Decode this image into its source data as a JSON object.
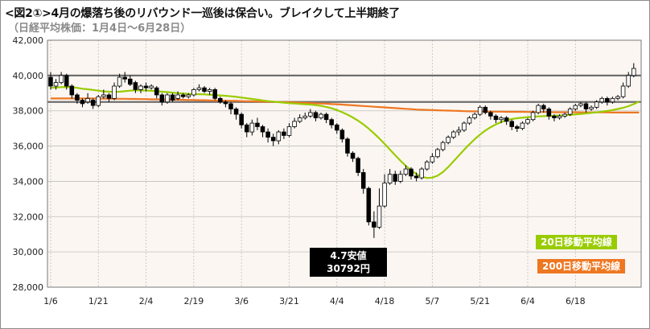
{
  "header": {
    "title": "<図2①>4月の爆落ち後のリバウンド一巡後は保合い。ブレイクして上半期終了",
    "subtitle": "（日経平均株価：1月4日～6月28日）"
  },
  "legend": {
    "ma20": "20日移動平均線",
    "ma200": "200日移動平均線"
  },
  "callout": {
    "line1": "4.7安値",
    "line2": "30792円"
  },
  "colors": {
    "ma20": "#99cc00",
    "ma200": "#ee7722",
    "bull": "#ffffff",
    "bear": "#000000",
    "plot_bg": "#fbf6f1",
    "grid": "#bfbfbf",
    "hline": "#6e6e6e"
  },
  "chart_data": {
    "type": "candlestick",
    "y_ticks": [
      "42,000",
      "40,000",
      "38,000",
      "36,000",
      "34,000",
      "32,000",
      "30,000",
      "28,000"
    ],
    "x_ticks": [
      "1/6",
      "1/21",
      "2/4",
      "2/19",
      "3/6",
      "3/21",
      "4/4",
      "4/18",
      "5/7",
      "5/21",
      "6/4",
      "6/18"
    ],
    "ylim": [
      28000,
      42000
    ],
    "horizontal_lines": [
      40000,
      38500
    ],
    "candles": [
      [
        39900,
        39400,
        40200,
        39200
      ],
      [
        39400,
        39600,
        39800,
        39200
      ],
      [
        39600,
        40000,
        40200,
        39500
      ],
      [
        40000,
        39400,
        40100,
        39200
      ],
      [
        39400,
        38900,
        39500,
        38700
      ],
      [
        38900,
        38600,
        39000,
        38400
      ],
      [
        38600,
        38400,
        38700,
        38200
      ],
      [
        38500,
        38700,
        39000,
        38400
      ],
      [
        38600,
        38300,
        38700,
        38100
      ],
      [
        38300,
        38800,
        38900,
        38200
      ],
      [
        38800,
        38900,
        39200,
        38700
      ],
      [
        38900,
        38700,
        39000,
        38500
      ],
      [
        38700,
        39400,
        39600,
        38600
      ],
      [
        39400,
        39900,
        40100,
        39300
      ],
      [
        39900,
        39800,
        40200,
        39600
      ],
      [
        39800,
        39500,
        40000,
        39400
      ],
      [
        39600,
        39200,
        39700,
        39000
      ],
      [
        39200,
        39400,
        39500,
        39000
      ],
      [
        39400,
        39300,
        39600,
        39100
      ],
      [
        39300,
        39400,
        39500,
        39200
      ],
      [
        39300,
        38900,
        39400,
        38700
      ],
      [
        38900,
        38500,
        39000,
        38300
      ],
      [
        38500,
        38900,
        39000,
        38400
      ],
      [
        38900,
        38600,
        39000,
        38500
      ],
      [
        38700,
        38900,
        39100,
        38600
      ],
      [
        38900,
        38800,
        39000,
        38700
      ],
      [
        38800,
        38900,
        39000,
        38700
      ],
      [
        38900,
        39200,
        39300,
        38800
      ],
      [
        39200,
        39300,
        39500,
        39100
      ],
      [
        39300,
        39100,
        39400,
        39000
      ],
      [
        39100,
        39200,
        39300,
        38900
      ],
      [
        39200,
        38700,
        39300,
        38600
      ],
      [
        38700,
        38500,
        38800,
        38400
      ],
      [
        38500,
        38400,
        38600,
        38200
      ],
      [
        38400,
        38100,
        38500,
        37800
      ],
      [
        38100,
        37800,
        38200,
        37500
      ],
      [
        37800,
        37200,
        37900,
        37000
      ],
      [
        37200,
        36800,
        37300,
        36500
      ],
      [
        36800,
        37300,
        37500,
        36600
      ],
      [
        37300,
        37100,
        37600,
        36900
      ],
      [
        37100,
        36800,
        37200,
        36500
      ],
      [
        36800,
        36500,
        37000,
        36200
      ],
      [
        36500,
        36300,
        36700,
        36000
      ],
      [
        36300,
        36800,
        36900,
        36100
      ],
      [
        36800,
        36600,
        37000,
        36400
      ],
      [
        36600,
        37100,
        37300,
        36500
      ],
      [
        37100,
        37400,
        37600,
        37000
      ],
      [
        37400,
        37600,
        37800,
        37300
      ],
      [
        37600,
        37700,
        37900,
        37500
      ],
      [
        37700,
        37900,
        38100,
        37600
      ],
      [
        37900,
        37600,
        38000,
        37400
      ],
      [
        37600,
        37800,
        37900,
        37500
      ],
      [
        37800,
        37500,
        37900,
        37300
      ],
      [
        37500,
        37200,
        37600,
        37000
      ],
      [
        37200,
        36900,
        37300,
        36700
      ],
      [
        36900,
        36400,
        37000,
        36200
      ],
      [
        36400,
        35600,
        36500,
        35400
      ],
      [
        35600,
        35300,
        35700,
        35100
      ],
      [
        35300,
        34500,
        35400,
        34300
      ],
      [
        34500,
        33600,
        34700,
        33300
      ],
      [
        33600,
        31700,
        33700,
        31500
      ],
      [
        31700,
        31400,
        32300,
        30792
      ],
      [
        31400,
        32600,
        33600,
        31300
      ],
      [
        32600,
        33900,
        34400,
        32500
      ],
      [
        33900,
        34400,
        34700,
        33800
      ],
      [
        34400,
        34000,
        34600,
        33800
      ],
      [
        34000,
        34400,
        34600,
        33900
      ],
      [
        34400,
        34700,
        34900,
        34300
      ],
      [
        34700,
        34300,
        34800,
        34100
      ],
      [
        34300,
        34200,
        34500,
        34000
      ],
      [
        34200,
        34700,
        34800,
        34100
      ],
      [
        34700,
        35100,
        35200,
        34600
      ],
      [
        35100,
        35400,
        35600,
        35000
      ],
      [
        35400,
        35800,
        35900,
        35300
      ],
      [
        35800,
        36200,
        36300,
        35700
      ],
      [
        36200,
        36500,
        36600,
        36100
      ],
      [
        36500,
        36800,
        36900,
        36400
      ],
      [
        36800,
        36900,
        37100,
        36600
      ],
      [
        36900,
        37300,
        37400,
        36800
      ],
      [
        37300,
        37600,
        37700,
        37200
      ],
      [
        37600,
        37800,
        37900,
        37500
      ],
      [
        37800,
        38200,
        38300,
        37700
      ],
      [
        38200,
        37900,
        38300,
        37800
      ],
      [
        37900,
        37700,
        38000,
        37500
      ],
      [
        37700,
        37500,
        37800,
        37300
      ],
      [
        37500,
        37600,
        37700,
        37300
      ],
      [
        37600,
        37400,
        37700,
        37200
      ],
      [
        37400,
        37100,
        37500,
        36900
      ],
      [
        37100,
        37000,
        37200,
        36800
      ],
      [
        37000,
        37300,
        37400,
        36900
      ],
      [
        37300,
        37500,
        37600,
        37200
      ],
      [
        37500,
        37900,
        38000,
        37400
      ],
      [
        37900,
        38300,
        38400,
        37800
      ],
      [
        38300,
        38100,
        38400,
        37900
      ],
      [
        38100,
        37700,
        38200,
        37500
      ],
      [
        37700,
        37600,
        37800,
        37400
      ],
      [
        37600,
        37700,
        37800,
        37500
      ],
      [
        37700,
        37800,
        37900,
        37600
      ],
      [
        37800,
        38100,
        38200,
        37700
      ],
      [
        38100,
        38300,
        38400,
        38000
      ],
      [
        38300,
        38400,
        38500,
        38200
      ],
      [
        38400,
        38100,
        38500,
        37900
      ],
      [
        38100,
        38200,
        38300,
        38000
      ],
      [
        38200,
        38500,
        38600,
        38100
      ],
      [
        38500,
        38700,
        38800,
        38400
      ],
      [
        38700,
        38500,
        38800,
        38300
      ],
      [
        38500,
        38700,
        38800,
        38400
      ],
      [
        38700,
        38800,
        38900,
        38600
      ],
      [
        38800,
        39400,
        39600,
        38700
      ],
      [
        39400,
        40000,
        40200,
        39300
      ],
      [
        40000,
        40400,
        40700,
        39900
      ]
    ],
    "ma20": [
      39300,
      39320,
      39340,
      39350,
      39330,
      39300,
      39250,
      39220,
      39180,
      39140,
      39100,
      39080,
      39070,
      39080,
      39110,
      39140,
      39160,
      39160,
      39150,
      39130,
      39110,
      39080,
      39060,
      39030,
      39000,
      38980,
      38960,
      38950,
      38940,
      38930,
      38910,
      38890,
      38870,
      38850,
      38820,
      38790,
      38750,
      38710,
      38670,
      38630,
      38590,
      38550,
      38520,
      38490,
      38460,
      38430,
      38410,
      38390,
      38370,
      38350,
      38320,
      38280,
      38220,
      38140,
      38040,
      37920,
      37780,
      37620,
      37440,
      37230,
      36990,
      36720,
      36430,
      36120,
      35800,
      35480,
      35170,
      34880,
      34620,
      34410,
      34260,
      34190,
      34210,
      34320,
      34530,
      34810,
      35130,
      35460,
      35790,
      36100,
      36390,
      36650,
      36880,
      37070,
      37230,
      37360,
      37460,
      37530,
      37580,
      37610,
      37640,
      37660,
      37680,
      37700,
      37710,
      37720,
      37730,
      37750,
      37770,
      37800,
      37820,
      37850,
      37880,
      37910,
      37950,
      37990,
      38040,
      38100,
      38170,
      38260,
      38380,
      38520
    ],
    "ma200": [
      38700,
      38700,
      38700,
      38700,
      38700,
      38700,
      38700,
      38700,
      38700,
      38690,
      38690,
      38690,
      38680,
      38680,
      38680,
      38670,
      38670,
      38660,
      38660,
      38650,
      38650,
      38640,
      38640,
      38630,
      38630,
      38620,
      38610,
      38610,
      38600,
      38600,
      38590,
      38580,
      38580,
      38570,
      38560,
      38560,
      38550,
      38540,
      38540,
      38530,
      38520,
      38510,
      38510,
      38500,
      38490,
      38480,
      38470,
      38460,
      38450,
      38440,
      38420,
      38410,
      38400,
      38380,
      38370,
      38350,
      38330,
      38310,
      38290,
      38270,
      38250,
      38230,
      38210,
      38190,
      38170,
      38150,
      38130,
      38110,
      38090,
      38070,
      38060,
      38050,
      38040,
      38030,
      38020,
      38010,
      38000,
      37990,
      37980,
      37970,
      37970,
      37960,
      37960,
      37950,
      37950,
      37950,
      37940,
      37940,
      37940,
      37940,
      37930,
      37930,
      37930,
      37930,
      37930,
      37920,
      37920,
      37920,
      37920,
      37920,
      37910,
      37910,
      37910,
      37910,
      37910,
      37910,
      37900,
      37900,
      37900,
      37900,
      37900,
      37900
    ],
    "x_tick_index": [
      0,
      9,
      18,
      27,
      36,
      45,
      54,
      63,
      72,
      81,
      90,
      99
    ]
  }
}
